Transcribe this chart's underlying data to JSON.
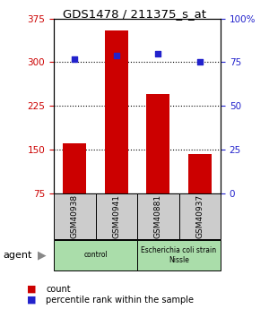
{
  "title": "GDS1478 / 211375_s_at",
  "samples": [
    "GSM40938",
    "GSM40941",
    "GSM40881",
    "GSM40937"
  ],
  "counts": [
    160,
    355,
    245,
    142
  ],
  "percentiles": [
    77,
    79,
    80,
    75
  ],
  "ylim_left": [
    75,
    375
  ],
  "ylim_right": [
    0,
    100
  ],
  "yticks_left": [
    75,
    150,
    225,
    300,
    375
  ],
  "yticks_right": [
    0,
    25,
    50,
    75,
    100
  ],
  "bar_color": "#cc0000",
  "dot_color": "#2222cc",
  "bar_bottom": 75,
  "groups": [
    {
      "label": "control",
      "span": [
        0,
        2
      ],
      "color": "#aaddaa"
    },
    {
      "label": "Escherichia coli strain\nNissle",
      "span": [
        2,
        4
      ],
      "color": "#aaddaa"
    }
  ],
  "legend_count_color": "#cc0000",
  "legend_pct_color": "#2222cc",
  "agent_label": "agent",
  "grid_yticks": [
    150,
    225,
    300
  ],
  "tick_color_left": "#cc0000",
  "tick_color_right": "#2222cc",
  "bar_width": 0.55
}
